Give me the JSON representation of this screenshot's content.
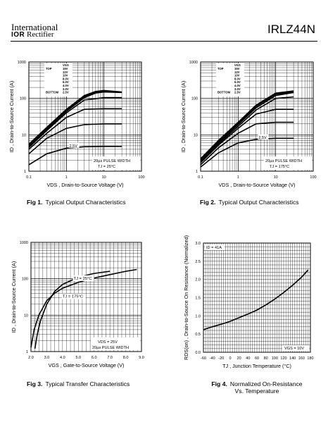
{
  "header": {
    "company_line1": "International",
    "company_logo": "IOR",
    "company_line2": "Rectifier",
    "part_number": "IRLZ44N"
  },
  "chart_data": [
    {
      "type": "line",
      "caption_num": "Fig 1.",
      "caption": "Typical Output Characteristics",
      "xlabel": "V_DS , Drain-to-Source Voltage (V)",
      "ylabel": "I_D , Drain-to-Source Current (A)",
      "xscale": "log",
      "yscale": "log",
      "xlim": [
        0.1,
        100
      ],
      "ylim": [
        1,
        1000
      ],
      "xticks": [
        "0.1",
        "1",
        "10",
        "100"
      ],
      "yticks": [
        "1",
        "10",
        "100",
        "1000"
      ],
      "legend_title": "VGS",
      "legend_top": "TOP",
      "legend_bottom": "BOTTOM",
      "legend": [
        "15V",
        "12V",
        "10V",
        "8.0V",
        "6.0V",
        "4.0V",
        "3.0V",
        "2.5V"
      ],
      "inline_label": "2.5V",
      "annotation1": "20µs PULSE WIDTH",
      "annotation2": "T_J = 25°C",
      "series": [
        {
          "name": "15V",
          "x": [
            0.1,
            0.3,
            1,
            3,
            6,
            10,
            30
          ],
          "y": [
            5.5,
            16,
            50,
            120,
            155,
            165,
            150
          ]
        },
        {
          "name": "12V",
          "x": [
            0.1,
            0.3,
            1,
            3,
            6,
            10,
            30
          ],
          "y": [
            5.2,
            15,
            48,
            115,
            150,
            160,
            148
          ]
        },
        {
          "name": "10V",
          "x": [
            0.1,
            0.3,
            1,
            3,
            6,
            10,
            30
          ],
          "y": [
            5,
            14.5,
            46,
            110,
            145,
            155,
            146
          ]
        },
        {
          "name": "8.0V",
          "x": [
            0.1,
            0.3,
            1,
            3,
            6,
            10,
            30
          ],
          "y": [
            4.8,
            14,
            44,
            105,
            140,
            150,
            145
          ]
        },
        {
          "name": "6.0V",
          "x": [
            0.1,
            0.3,
            1,
            3,
            10,
            30
          ],
          "y": [
            4.5,
            13,
            40,
            90,
            105,
            105
          ]
        },
        {
          "name": "4.0V",
          "x": [
            0.1,
            0.3,
            1,
            3,
            10,
            30
          ],
          "y": [
            4,
            11,
            30,
            50,
            52,
            52
          ]
        },
        {
          "name": "3.0V",
          "x": [
            0.1,
            0.3,
            1,
            3,
            10,
            30
          ],
          "y": [
            3,
            8,
            15,
            19,
            20,
            20
          ]
        },
        {
          "name": "2.5V",
          "x": [
            0.1,
            0.3,
            1,
            3,
            10,
            30
          ],
          "y": [
            1.5,
            3,
            4.3,
            4.7,
            4.8,
            4.8
          ]
        }
      ]
    },
    {
      "type": "line",
      "caption_num": "Fig 2.",
      "caption": "Typical Output Characteristics",
      "xlabel": "V_DS , Drain-to-Source Voltage (V)",
      "ylabel": "I_D , Drain-to-Source Current (A)",
      "xscale": "log",
      "yscale": "log",
      "xlim": [
        0.1,
        100
      ],
      "ylim": [
        1,
        1000
      ],
      "xticks": [
        "0.1",
        "1",
        "10",
        "100"
      ],
      "yticks": [
        "1",
        "10",
        "100",
        "1000"
      ],
      "legend_title": "VGS",
      "legend_top": "TOP",
      "legend_bottom": "BOTTOM",
      "legend": [
        "15V",
        "12V",
        "10V",
        "8.0V",
        "6.0V",
        "4.0V",
        "3.0V",
        "2.5V"
      ],
      "inline_label": "2.5V",
      "annotation1": "20µs PULSE WIDTH",
      "annotation2": "T_J = 175°C",
      "series": [
        {
          "name": "15V",
          "x": [
            0.1,
            0.3,
            1,
            3,
            10,
            30
          ],
          "y": [
            2.2,
            7,
            22,
            65,
            140,
            160
          ]
        },
        {
          "name": "12V",
          "x": [
            0.1,
            0.3,
            1,
            3,
            10,
            30
          ],
          "y": [
            2.1,
            6.6,
            21,
            62,
            135,
            155
          ]
        },
        {
          "name": "10V",
          "x": [
            0.1,
            0.3,
            1,
            3,
            10,
            30
          ],
          "y": [
            2,
            6.3,
            20,
            60,
            130,
            150
          ]
        },
        {
          "name": "8.0V",
          "x": [
            0.1,
            0.3,
            1,
            3,
            10,
            30
          ],
          "y": [
            1.9,
            6,
            19,
            55,
            120,
            145
          ]
        },
        {
          "name": "6.0V",
          "x": [
            0.1,
            0.3,
            1,
            3,
            10,
            30
          ],
          "y": [
            1.8,
            5.6,
            17,
            48,
            100,
            110
          ]
        },
        {
          "name": "4.0V",
          "x": [
            0.1,
            0.3,
            1,
            3,
            10,
            30
          ],
          "y": [
            1.7,
            5.2,
            15,
            37,
            50,
            50
          ]
        },
        {
          "name": "3.0V",
          "x": [
            0.1,
            0.3,
            1,
            3,
            10,
            30
          ],
          "y": [
            1.5,
            4.4,
            11,
            20,
            22,
            22
          ]
        },
        {
          "name": "2.5V",
          "x": [
            0.1,
            0.3,
            1,
            3,
            10,
            30
          ],
          "y": [
            1.3,
            3.2,
            6,
            7.5,
            8,
            8
          ]
        }
      ]
    },
    {
      "type": "line",
      "caption_num": "Fig 3.",
      "caption": "Typical Transfer Characteristics",
      "xlabel": "V_GS , Gate-to-Source Voltage (V)",
      "ylabel": "I_D , Drain-to-Source Current (A)",
      "xscale": "linear",
      "yscale": "log",
      "xlim": [
        2.0,
        9.0
      ],
      "ylim": [
        1,
        1000
      ],
      "xticks": [
        "2.0",
        "3.0",
        "4.0",
        "5.0",
        "6.0",
        "7.0",
        "8.0",
        "9.0"
      ],
      "yticks": [
        "1",
        "10",
        "100",
        "1000"
      ],
      "annotation1": "V_DS = 25V",
      "annotation2": "20µs PULSE WIDTH",
      "series": [
        {
          "name": "T_J = 25°C",
          "x": [
            2.25,
            2.4,
            2.6,
            3.0,
            3.5,
            4.0,
            5.0,
            6.0,
            7.0
          ],
          "y": [
            1.2,
            3,
            7,
            20,
            45,
            70,
            110,
            140,
            160
          ]
        },
        {
          "name": "T_J = 175°C",
          "x": [
            2.0,
            2.2,
            2.5,
            3.0,
            3.5,
            4.0,
            5.0,
            6.0,
            7.0,
            8.0,
            8.7
          ],
          "y": [
            1.3,
            4,
            10,
            25,
            40,
            55,
            80,
            105,
            130,
            160,
            180
          ]
        }
      ]
    },
    {
      "type": "line",
      "caption_num": "Fig 4.",
      "caption": "Normalized On-Resistance",
      "caption_line2": "Vs. Temperature",
      "xlabel": "T_J , Junction Temperature (°C)",
      "ylabel": "R_DS(on) , Drain-to-Source On Resistance (Normalized)",
      "xscale": "linear",
      "yscale": "linear",
      "xlim": [
        -60,
        180
      ],
      "ylim": [
        0.0,
        3.0
      ],
      "xticks": [
        "-60",
        "-40",
        "-20",
        "0",
        "20",
        "40",
        "60",
        "80",
        "100",
        "120",
        "140",
        "160",
        "180"
      ],
      "yticks": [
        "0.0",
        "0.5",
        "1.0",
        "1.5",
        "2.0",
        "2.5",
        "3.0"
      ],
      "annotation1": "I_D = 41A",
      "annotation2": "V_GS = 10V",
      "series": [
        {
          "name": "R_DS(on)",
          "x": [
            -60,
            -40,
            -20,
            0,
            20,
            40,
            60,
            80,
            100,
            120,
            140,
            160,
            175
          ],
          "y": [
            0.62,
            0.7,
            0.77,
            0.85,
            0.95,
            1.05,
            1.16,
            1.3,
            1.46,
            1.64,
            1.84,
            2.06,
            2.26
          ]
        }
      ]
    }
  ]
}
